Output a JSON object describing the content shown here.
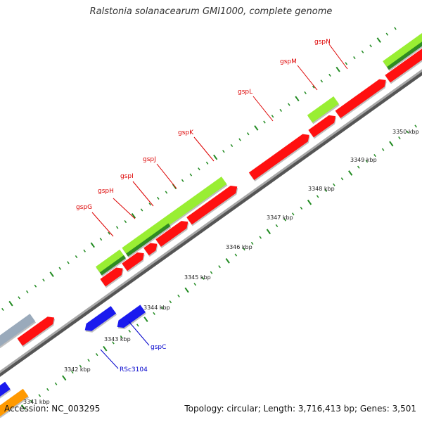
{
  "title": "Ralstonia solanacearum GMI1000, complete genome",
  "footer": {
    "accession": "Accession: NC_003295",
    "summary": "Topology: circular; Length: 3,716,413 bp; Genes: 3,501"
  },
  "colors": {
    "backbone": "#8c8c8c",
    "forward_cds": "#ff1010",
    "reverse_cds": "#1a1aee",
    "feature_light_green": "#99ee33",
    "feature_dark_green": "#2e8b22",
    "feature_grey_blue": "#9aaabb",
    "feature_orange": "#ff9900",
    "tick_green": "#228b22",
    "label_red": "#dd0000",
    "label_blue": "#0000cc"
  },
  "scale_labels": [
    "3341 kbp",
    "3342 kbp",
    "3343 kbp",
    "3344 kbp",
    "3345 kbp",
    "3346 kbp",
    "3347 kbp",
    "3348 kbp",
    "3349 kbp",
    "3350 kbp"
  ],
  "gene_labels": [
    {
      "name": "gspG",
      "color": "label_red",
      "icon": "red-label"
    },
    {
      "name": "gspH",
      "color": "label_red",
      "icon": "red-label"
    },
    {
      "name": "gspI",
      "color": "label_red",
      "icon": "red-label"
    },
    {
      "name": "gspJ",
      "color": "label_red",
      "icon": "red-label"
    },
    {
      "name": "gspK",
      "color": "label_red",
      "icon": "red-label"
    },
    {
      "name": "gspL",
      "color": "label_red",
      "icon": "red-label"
    },
    {
      "name": "gspM",
      "color": "label_red",
      "icon": "red-label"
    },
    {
      "name": "gspN",
      "color": "label_red",
      "icon": "red-label"
    },
    {
      "name": "gspC",
      "color": "label_blue",
      "icon": "blue-label"
    },
    {
      "name": "RSc3104",
      "color": "label_blue",
      "icon": "blue-label"
    }
  ]
}
